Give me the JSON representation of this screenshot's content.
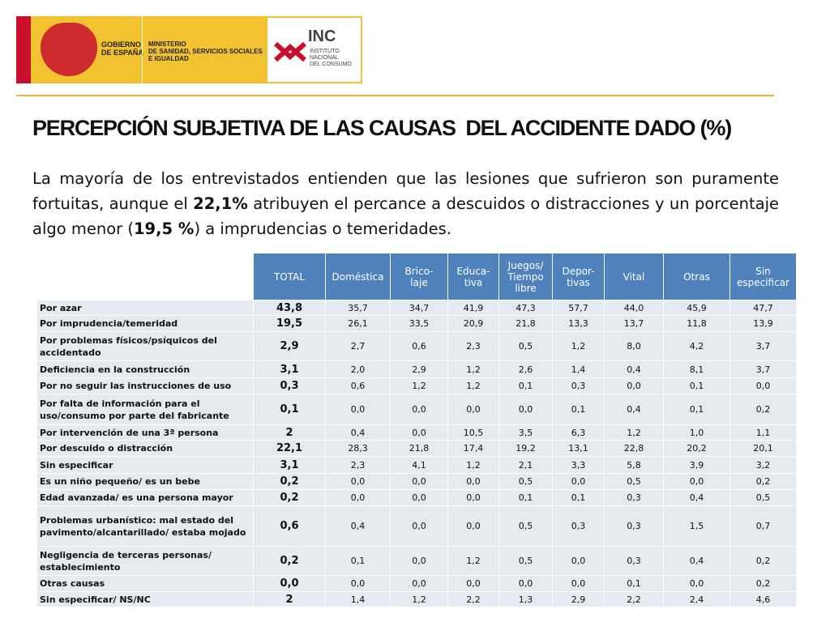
{
  "header": {
    "gov": "GOBIERNO\nDE ESPAÑA",
    "ministry": "MINISTERIO\nDE SANIDAD, SERVICIOS SOCIALES\nE IGUALDAD",
    "inc": "INC",
    "inc_name": "INSTITUTO\nNACIONAL\nDEL CONSUMO"
  },
  "title": "PERCEPCIÓN SUBJETIVA DE LAS CAUSAS  DEL ACCIDENTE DADO (%)",
  "paragraph": [
    {
      "text": "La mayoría de los entrevistados entienden que las lesiones que sufrieron son puramente fortuitas, aunque el "
    },
    {
      "text": "22,1%",
      "bold": true
    },
    {
      "text": " atribuyen el percance a descuidos o distracciones y un porcentaje algo menor ("
    },
    {
      "text": "19,5 %",
      "bold": true
    },
    {
      "text": ") a imprudencias o temeridades."
    }
  ],
  "table": {
    "columns": [
      "TOTAL",
      "Doméstica",
      "Brico-\nlaje",
      "Educa-\ntiva",
      "Juegos/\nTiempo\nlibre",
      "Depor-\ntivas",
      "Vital",
      "Otras",
      "Sin\nespecificar"
    ],
    "rows": [
      [
        "Por azar",
        "43,8",
        "35,7",
        "34,7",
        "41,9",
        "47,3",
        "57,7",
        "44,0",
        "45,9",
        "47,7"
      ],
      [
        "Por imprudencia/temeridad",
        "19,5",
        "26,1",
        "33,5",
        "20,9",
        "21,8",
        "13,3",
        "13,7",
        "11,8",
        "13,9"
      ],
      [
        "Por problemas físicos/psíquicos del accidentado",
        "2,9",
        "2,7",
        "0,6",
        "2,3",
        "0,5",
        "1,2",
        "8,0",
        "4,2",
        "3,7"
      ],
      [
        "Deficiencia en la construcción",
        "3,1",
        "2,0",
        "2,9",
        "1,2",
        "2,6",
        "1,4",
        "0,4",
        "8,1",
        "3,7"
      ],
      [
        "Por no seguir las instrucciones de uso",
        "0,3",
        "0,6",
        "1,2",
        "1,2",
        "0,1",
        "0,3",
        "0,0",
        "0,1",
        "0,0"
      ],
      [
        "Por falta de información para el uso/consumo por parte del fabricante",
        "0,1",
        "0,0",
        "0,0",
        "0,0",
        "0,0",
        "0,1",
        "0,4",
        "0,1",
        "0,2"
      ],
      [
        "Por intervención de una 3ª persona",
        "2",
        "0,4",
        "0,0",
        "10,5",
        "3,5",
        "6,3",
        "1,2",
        "1,0",
        "1,1"
      ],
      [
        "Por descuido o distracción",
        "22,1",
        "28,3",
        "21,8",
        "17,4",
        "19,2",
        "13,1",
        "22,8",
        "20,2",
        "20,1"
      ],
      [
        "Sin especificar",
        "3,1",
        "2,3",
        "4,1",
        "1,2",
        "2,1",
        "3,3",
        "5,8",
        "3,9",
        "3,2"
      ],
      [
        "Es un niño pequeño/ es un bebe",
        "0,2",
        "0,0",
        "0,0",
        "0,0",
        "0,5",
        "0,0",
        "0,5",
        "0,0",
        "0,2"
      ],
      [
        "Edad avanzada/ es una persona mayor",
        "0,2",
        "0,0",
        "0,0",
        "0,0",
        "0,1",
        "0,1",
        "0,3",
        "0,4",
        "0,5"
      ],
      [
        "Problemas urbanístico: mal estado del pavimento/alcantarillado/ estaba mojado",
        "0,6",
        "0,4",
        "0,0",
        "0,0",
        "0,5",
        "0,3",
        "0,3",
        "1,5",
        "0,7"
      ],
      [
        "Negligencia de terceras personas/ establecimiento",
        "0,2",
        "0,1",
        "0,0",
        "1,2",
        "0,5",
        "0,0",
        "0,3",
        "0,4",
        "0,2"
      ],
      [
        "Otras causas",
        "0,0",
        "0,0",
        "0,0",
        "0,0",
        "0,0",
        "0,0",
        "0,1",
        "0,0",
        "0,2"
      ],
      [
        "Sin especificar/ NS/NC",
        "2",
        "1,4",
        "1,2",
        "2,2",
        "1,3",
        "2,9",
        "2,2",
        "2,4",
        "4,6"
      ]
    ]
  }
}
